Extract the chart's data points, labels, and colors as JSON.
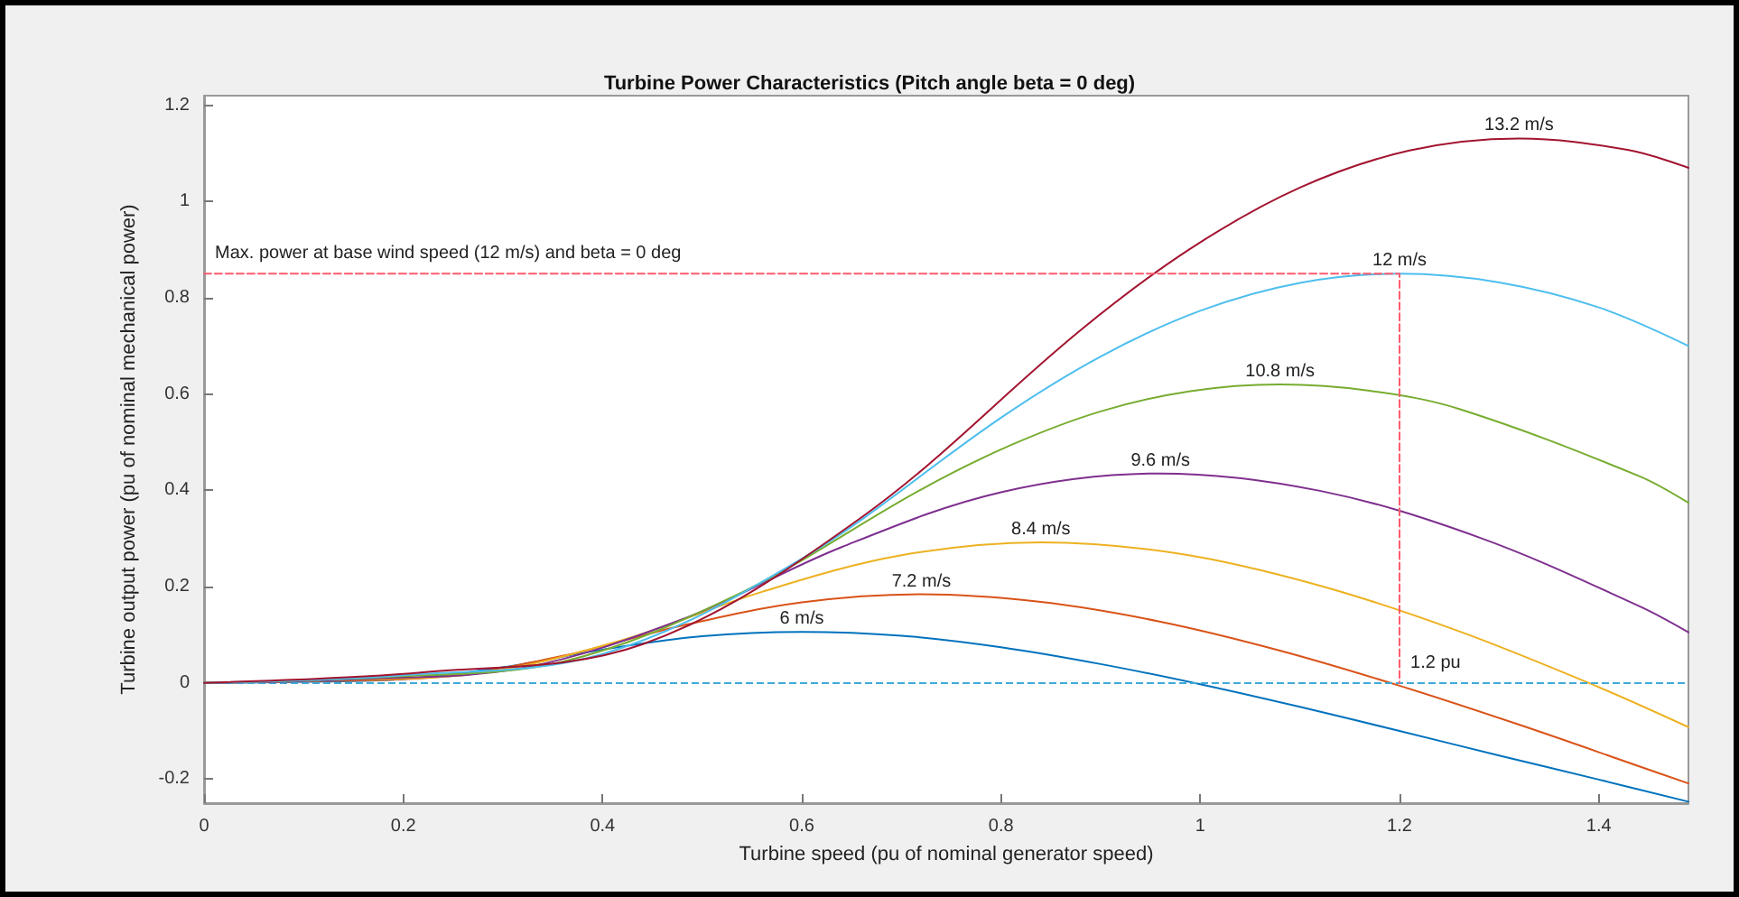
{
  "chart_data": {
    "type": "line",
    "title": "Turbine Power Characteristics (Pitch angle beta = 0 deg)",
    "xlabel": "Turbine speed (pu of nominal generator speed)",
    "ylabel": "Turbine output power (pu of nominal mechanical power)",
    "xlim": [
      0,
      1.49
    ],
    "ylim": [
      -0.25,
      1.22
    ],
    "xticks": [
      0,
      0.2,
      0.4,
      0.6,
      0.8,
      1,
      1.2,
      1.4
    ],
    "yticks": [
      -0.2,
      0,
      0.2,
      0.4,
      0.6,
      0.8,
      1,
      1.2
    ],
    "grid": false,
    "legend": false,
    "marker": "none",
    "line_style": "solid",
    "series": [
      {
        "name": "6 m/s",
        "color": "#0072bd",
        "x": [
          0,
          0.1,
          0.2,
          0.3,
          0.4,
          0.5,
          0.6,
          0.7,
          0.8,
          0.9,
          1,
          1.1,
          1.2,
          1.3,
          1.4,
          1.49
        ],
        "values": [
          0,
          0.002,
          0.008,
          0.032,
          0.069,
          0.097,
          0.106,
          0.098,
          0.074,
          0.039,
          -0.003,
          -0.05,
          -0.1,
          -0.151,
          -0.201,
          -0.247
        ]
      },
      {
        "name": "7.2 m/s",
        "color": "#d95319",
        "x": [
          0,
          0.12,
          0.24,
          0.36,
          0.48,
          0.6,
          0.72,
          0.84,
          0.96,
          1.08,
          1.2,
          1.32,
          1.44,
          1.49
        ],
        "values": [
          0,
          0.004,
          0.013,
          0.056,
          0.119,
          0.167,
          0.184,
          0.168,
          0.127,
          0.067,
          -0.006,
          -0.087,
          -0.173,
          -0.209
        ]
      },
      {
        "name": "8.4 m/s",
        "color": "#edb120",
        "x": [
          0,
          0.14,
          0.28,
          0.42,
          0.56,
          0.7,
          0.84,
          0.98,
          1.12,
          1.26,
          1.4,
          1.49
        ],
        "values": [
          0,
          0.006,
          0.021,
          0.089,
          0.189,
          0.265,
          0.292,
          0.268,
          0.202,
          0.107,
          -0.009,
          -0.092
        ]
      },
      {
        "name": "9.6 m/s",
        "color": "#7e2f8e",
        "x": [
          0,
          0.16,
          0.32,
          0.48,
          0.64,
          0.8,
          0.96,
          1.12,
          1.28,
          1.44,
          1.49
        ],
        "values": [
          0,
          0.008,
          0.031,
          0.132,
          0.282,
          0.396,
          0.435,
          0.399,
          0.302,
          0.16,
          0.105
        ]
      },
      {
        "name": "10.8 m/s",
        "color": "#77ac30",
        "x": [
          0,
          0.18,
          0.36,
          0.54,
          0.72,
          0.81,
          0.9,
          0.99,
          1.08,
          1.17,
          1.26,
          1.44,
          1.49
        ],
        "values": [
          0,
          0.012,
          0.044,
          0.188,
          0.402,
          0.494,
          0.564,
          0.606,
          0.62,
          0.607,
          0.569,
          0.43,
          0.374
        ]
      },
      {
        "name": "12 m/s",
        "color": "#4dbeee",
        "x": [
          0,
          0.2,
          0.4,
          0.6,
          0.8,
          0.9,
          1,
          1.1,
          1.2,
          1.3,
          1.4,
          1.49
        ],
        "values": [
          0,
          0.016,
          0.06,
          0.258,
          0.551,
          0.678,
          0.773,
          0.831,
          0.85,
          0.832,
          0.78,
          0.7
        ]
      },
      {
        "name": "13.2 m/s",
        "color": "#a2142f",
        "x": [
          0,
          0.22,
          0.44,
          0.66,
          0.88,
          0.99,
          1.1,
          1.21,
          1.32,
          1.43,
          1.49
        ],
        "values": [
          0,
          0.022,
          0.08,
          0.344,
          0.733,
          0.902,
          1.029,
          1.106,
          1.131,
          1.107,
          1.07
        ]
      },
      {
        "type": "line",
        "line_style": "dashed",
        "color": "#ff5a6e",
        "x": [
          0,
          1.2,
          1.2
        ],
        "values": [
          0.85,
          0.85,
          0
        ]
      }
    ],
    "ref_lines": [
      {
        "axis": "y",
        "value": 0,
        "color": "#3fa9d8",
        "line_style": "dashed"
      }
    ],
    "annotations": [
      {
        "text": "Max. power at base wind speed (12 m/s) and beta = 0 deg",
        "x": 0,
        "y": 0.85
      },
      {
        "text": "1.2 pu",
        "x": 1.2,
        "y": 0
      }
    ]
  }
}
